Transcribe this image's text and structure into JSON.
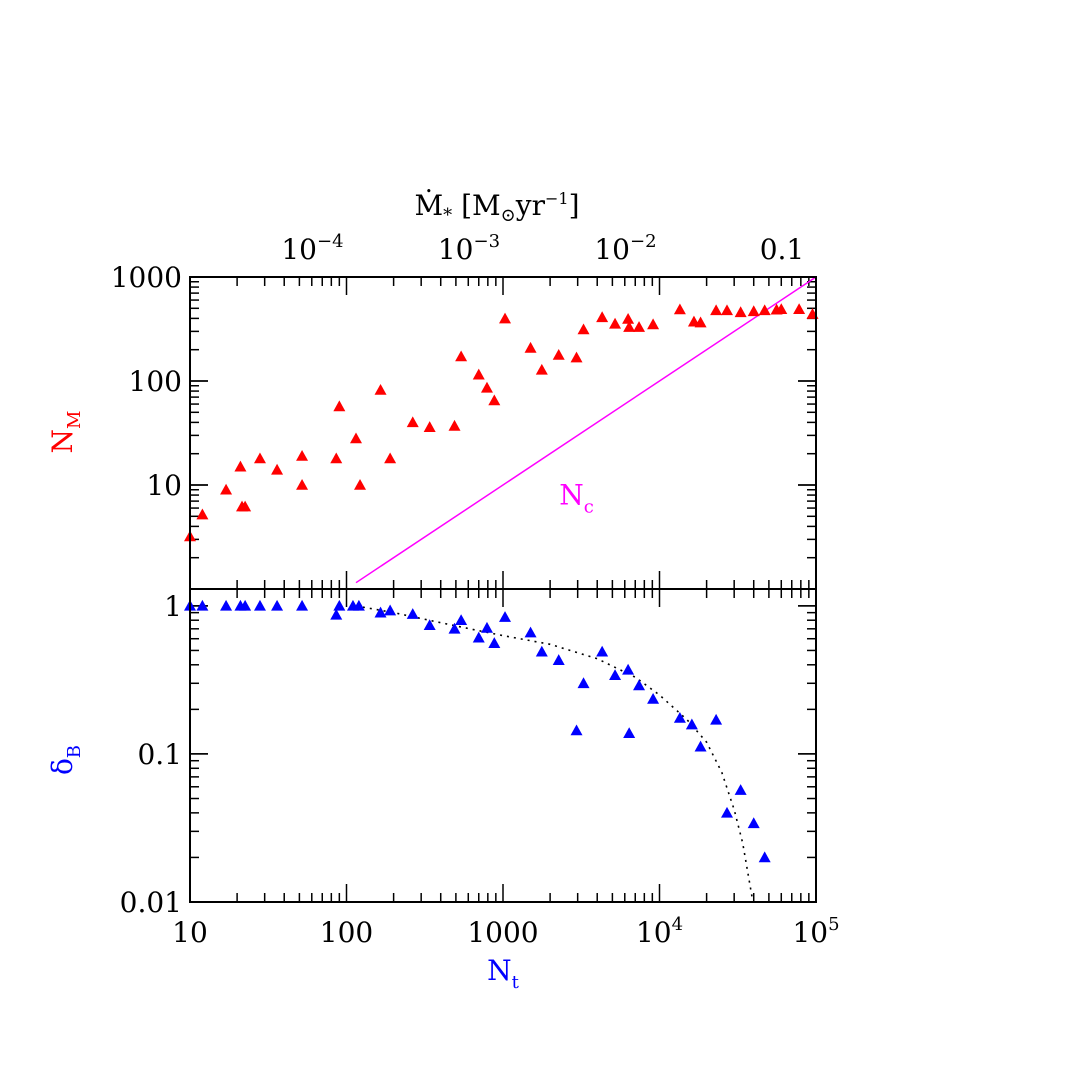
{
  "top_axis": {
    "label_main": "Ṁ",
    "label_sub": "*",
    "label_bracket_open": " [M",
    "label_sun": "⊙",
    "label_unit": "yr",
    "label_exp": "−1",
    "label_bracket_close": "]",
    "ticks": [
      {
        "n": 60.6,
        "base": "10",
        "exp": "−4"
      },
      {
        "n": 606,
        "base": "10",
        "exp": "−3"
      },
      {
        "n": 6060,
        "base": "10",
        "exp": "−2"
      },
      {
        "n": 60600,
        "base": "0.1",
        "exp": ""
      }
    ]
  },
  "chart_data": [
    {
      "type": "scatter",
      "name": "top-panel",
      "xscale": "log",
      "yscale": "log",
      "xlim": [
        10,
        100000
      ],
      "ylim": [
        1,
        1000
      ],
      "ylabel": "N",
      "ylabel_sub": "M",
      "yticks": [
        {
          "v": 10,
          "t": "10"
        },
        {
          "v": 100,
          "t": "100"
        },
        {
          "v": 1000,
          "t": "1000"
        }
      ],
      "colors": {
        "points": "#ff0000",
        "line": "#ff00ff",
        "label": "#ff0000"
      },
      "series": [
        {
          "marker": "triangle",
          "points": [
            [
              10,
              3.2
            ],
            [
              12,
              5.2
            ],
            [
              17,
              9
            ],
            [
              21,
              15
            ],
            [
              21.5,
              6.2
            ],
            [
              22.5,
              6.2
            ],
            [
              28,
              18
            ],
            [
              36,
              14
            ],
            [
              52,
              19
            ],
            [
              52,
              10
            ],
            [
              86,
              18
            ],
            [
              90,
              57
            ],
            [
              115,
              28
            ],
            [
              122,
              10
            ],
            [
              165,
              82
            ],
            [
              190,
              18
            ],
            [
              265,
              40
            ],
            [
              340,
              36
            ],
            [
              490,
              37
            ],
            [
              540,
              172
            ],
            [
              700,
              115
            ],
            [
              790,
              86
            ],
            [
              880,
              65
            ],
            [
              1030,
              398
            ],
            [
              1500,
              208
            ],
            [
              1770,
              128
            ],
            [
              2270,
              178
            ],
            [
              2950,
              168
            ],
            [
              3270,
              313
            ],
            [
              4300,
              410
            ],
            [
              5200,
              355
            ],
            [
              6300,
              395
            ],
            [
              6400,
              330
            ],
            [
              7400,
              330
            ],
            [
              9100,
              350
            ],
            [
              13500,
              487
            ],
            [
              16600,
              372
            ],
            [
              18300,
              365
            ],
            [
              23000,
              478
            ],
            [
              27000,
              478
            ],
            [
              33000,
              458
            ],
            [
              40000,
              468
            ],
            [
              47000,
              478
            ],
            [
              56000,
              485
            ],
            [
              60000,
              490
            ],
            [
              78000,
              490
            ],
            [
              95000,
              440
            ]
          ]
        },
        {
          "name": "N_c",
          "type": "line",
          "points": [
            [
              115,
              1.15
            ],
            [
              100000,
              1000
            ]
          ]
        }
      ],
      "annotations": [
        {
          "text": "N",
          "sub": "c",
          "x": 2950,
          "y": 6.5,
          "color": "#ff00ff"
        }
      ]
    },
    {
      "type": "scatter",
      "name": "bottom-panel",
      "xscale": "log",
      "yscale": "log",
      "xlim": [
        10,
        100000
      ],
      "ylim": [
        0.01,
        1.3
      ],
      "xlabel": "N",
      "xlabel_sub": "t",
      "ylabel": "δ",
      "ylabel_sub": "B",
      "xticks": [
        {
          "v": 10,
          "base": "10",
          "exp": ""
        },
        {
          "v": 100,
          "base": "100",
          "exp": ""
        },
        {
          "v": 1000,
          "base": "1000",
          "exp": ""
        },
        {
          "v": 10000,
          "base": "10",
          "exp": "4"
        },
        {
          "v": 100000,
          "base": "10",
          "exp": "5"
        }
      ],
      "yticks": [
        {
          "v": 0.01,
          "t": "0.01"
        },
        {
          "v": 0.1,
          "t": "0.1"
        },
        {
          "v": 1,
          "t": "1"
        }
      ],
      "colors": {
        "points": "#0000ff",
        "curve": "#000000",
        "label": "#0000ff"
      },
      "series": [
        {
          "marker": "triangle",
          "points": [
            [
              10,
              1.0
            ],
            [
              12,
              1.0
            ],
            [
              17,
              1.0
            ],
            [
              21,
              1.0
            ],
            [
              22.5,
              1.0
            ],
            [
              28,
              1.0
            ],
            [
              36,
              1.0
            ],
            [
              52,
              1.0
            ],
            [
              86,
              0.87
            ],
            [
              90,
              1.0
            ],
            [
              110,
              1.0
            ],
            [
              120,
              1.0
            ],
            [
              165,
              0.9
            ],
            [
              190,
              0.93
            ],
            [
              265,
              0.88
            ],
            [
              340,
              0.74
            ],
            [
              490,
              0.7
            ],
            [
              540,
              0.8
            ],
            [
              700,
              0.61
            ],
            [
              790,
              0.71
            ],
            [
              880,
              0.56
            ],
            [
              1030,
              0.84
            ],
            [
              1500,
              0.66
            ],
            [
              1770,
              0.49
            ],
            [
              2270,
              0.43
            ],
            [
              2950,
              0.144
            ],
            [
              3270,
              0.3
            ],
            [
              4300,
              0.49
            ],
            [
              5200,
              0.34
            ],
            [
              6300,
              0.37
            ],
            [
              6400,
              0.138
            ],
            [
              7400,
              0.29
            ],
            [
              9100,
              0.235
            ],
            [
              13500,
              0.175
            ],
            [
              16100,
              0.158
            ],
            [
              18300,
              0.112
            ],
            [
              23000,
              0.17
            ],
            [
              27000,
              0.04
            ],
            [
              33000,
              0.057
            ],
            [
              40000,
              0.034
            ],
            [
              47000,
              0.02
            ]
          ]
        },
        {
          "type": "line",
          "style": "dotted",
          "points": [
            [
              115,
              1.0
            ],
            [
              200,
              0.9
            ],
            [
              400,
              0.77
            ],
            [
              700,
              0.68
            ],
            [
              1000,
              0.63
            ],
            [
              2000,
              0.55
            ],
            [
              4000,
              0.44
            ],
            [
              7000,
              0.33
            ],
            [
              10000,
              0.25
            ],
            [
              15000,
              0.17
            ],
            [
              20000,
              0.12
            ],
            [
              25000,
              0.075
            ],
            [
              30000,
              0.042
            ],
            [
              34000,
              0.025
            ],
            [
              37000,
              0.015
            ],
            [
              39500,
              0.01
            ]
          ]
        }
      ]
    }
  ]
}
